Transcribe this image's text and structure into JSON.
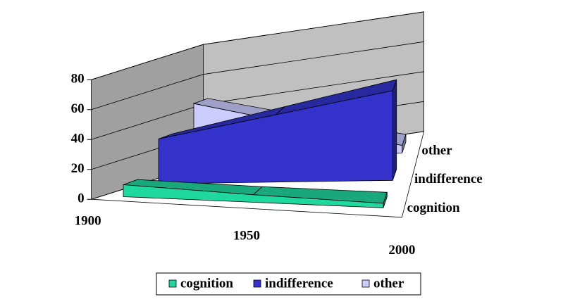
{
  "chart_data": {
    "type": "area3d",
    "categories": [
      "1900",
      "1950",
      "2000"
    ],
    "series": [
      {
        "name": "cognition",
        "color": "#1fd89e",
        "values": [
          8,
          5,
          3
        ]
      },
      {
        "name": "indifference",
        "color": "#3333cc",
        "values": [
          30,
          45,
          60
        ]
      },
      {
        "name": "other",
        "color": "#ccccff",
        "values": [
          45,
          25,
          5
        ]
      }
    ],
    "ylim": [
      0,
      80
    ],
    "yticks": [
      0,
      20,
      40,
      60,
      80
    ],
    "grid": true
  }
}
